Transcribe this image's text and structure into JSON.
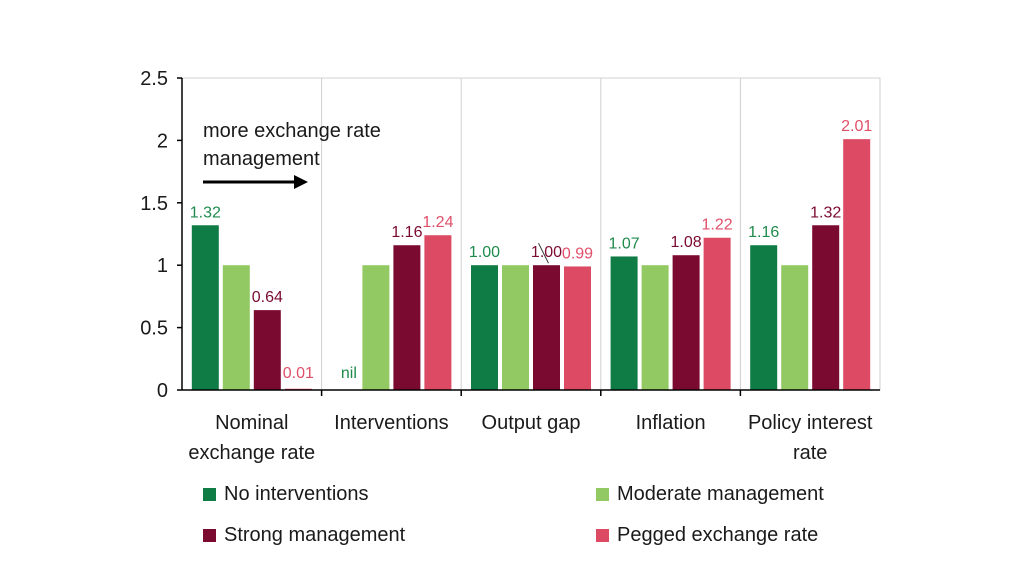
{
  "chart_data": {
    "type": "bar",
    "categories": [
      [
        "Nominal",
        "exchange rate"
      ],
      [
        "Interventions"
      ],
      [
        "Output gap"
      ],
      [
        "Inflation"
      ],
      [
        "Policy interest",
        "rate"
      ]
    ],
    "series": [
      {
        "name": "No interventions",
        "color": "#0f7b45",
        "label_color": "#1f8a4c",
        "values": [
          1.32,
          null,
          1.0,
          1.07,
          1.16
        ],
        "labels": [
          "1.32",
          "nil",
          "1.00",
          "1.07",
          "1.16"
        ]
      },
      {
        "name": "Moderate management",
        "color": "#92c963",
        "label_color": "#1f8a4c",
        "values": [
          1.0,
          1.0,
          1.0,
          1.0,
          1.0
        ],
        "labels": [
          "",
          "",
          "",
          "",
          ""
        ]
      },
      {
        "name": "Strong management",
        "color": "#7b0a30",
        "label_color": "#7b0a30",
        "values": [
          0.64,
          1.16,
          1.0,
          1.08,
          1.32
        ],
        "labels": [
          "0.64",
          "1.16",
          "1.00",
          "1.08",
          "1.32"
        ]
      },
      {
        "name": "Pegged exchange rate",
        "color": "#dc4a63",
        "label_color": "#e0506a",
        "values": [
          0.01,
          1.24,
          0.99,
          1.22,
          2.01
        ],
        "labels": [
          "0.01",
          "1.24",
          "0.99",
          "1.22",
          "2.01"
        ]
      }
    ],
    "yticks": [
      "0",
      "0.5",
      "1",
      "1.5",
      "2",
      "2.5"
    ],
    "ylim": [
      0,
      2.5
    ],
    "grid": "vertical gridlines between categories",
    "legend_position": "bottom",
    "annotation": {
      "text_line1": "more exchange rate",
      "text_line2": "management",
      "arrow": "right"
    }
  }
}
